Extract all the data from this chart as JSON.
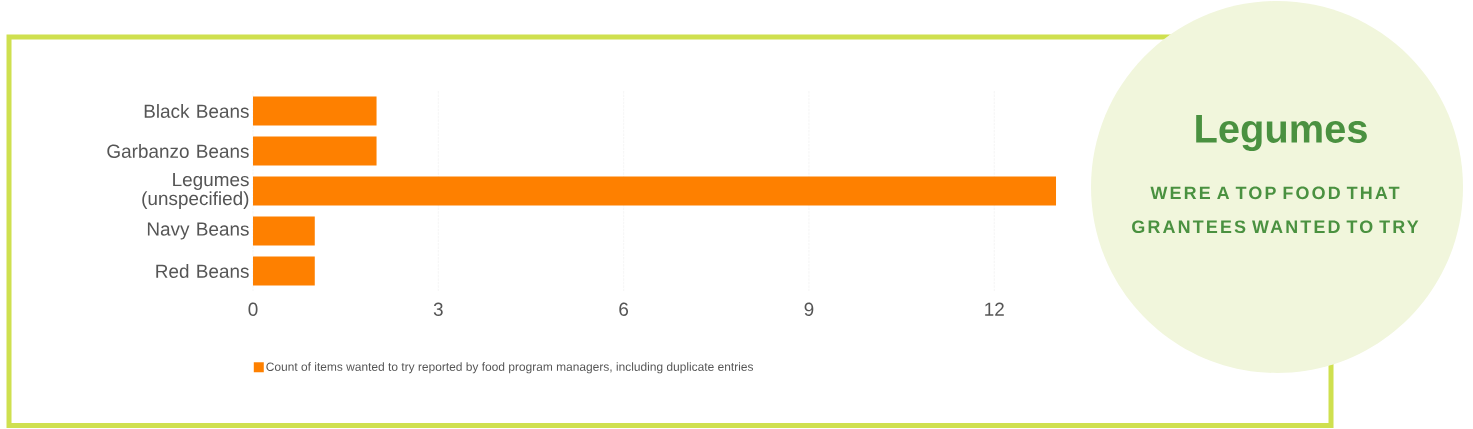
{
  "chart_data": {
    "type": "bar",
    "orientation": "horizontal",
    "categories": [
      "Black Beans",
      "Garbanzo Beans",
      "Legumes (unspecified)",
      "Navy Beans",
      "Red Beans"
    ],
    "series": [
      {
        "name": "Count of items wanted to try reported by food program managers, including duplicate entries",
        "color": "#fe8000",
        "values": [
          2,
          2,
          13,
          1,
          1
        ]
      }
    ],
    "xlim": [
      0,
      13
    ],
    "xticks": [
      0,
      3,
      6,
      9,
      12
    ],
    "grid": "x",
    "legend": "bottom",
    "annotations": [
      "Legumes",
      "WERE A TOP FOOD THAT GRANTEES WANTED TO TRY"
    ]
  }
}
